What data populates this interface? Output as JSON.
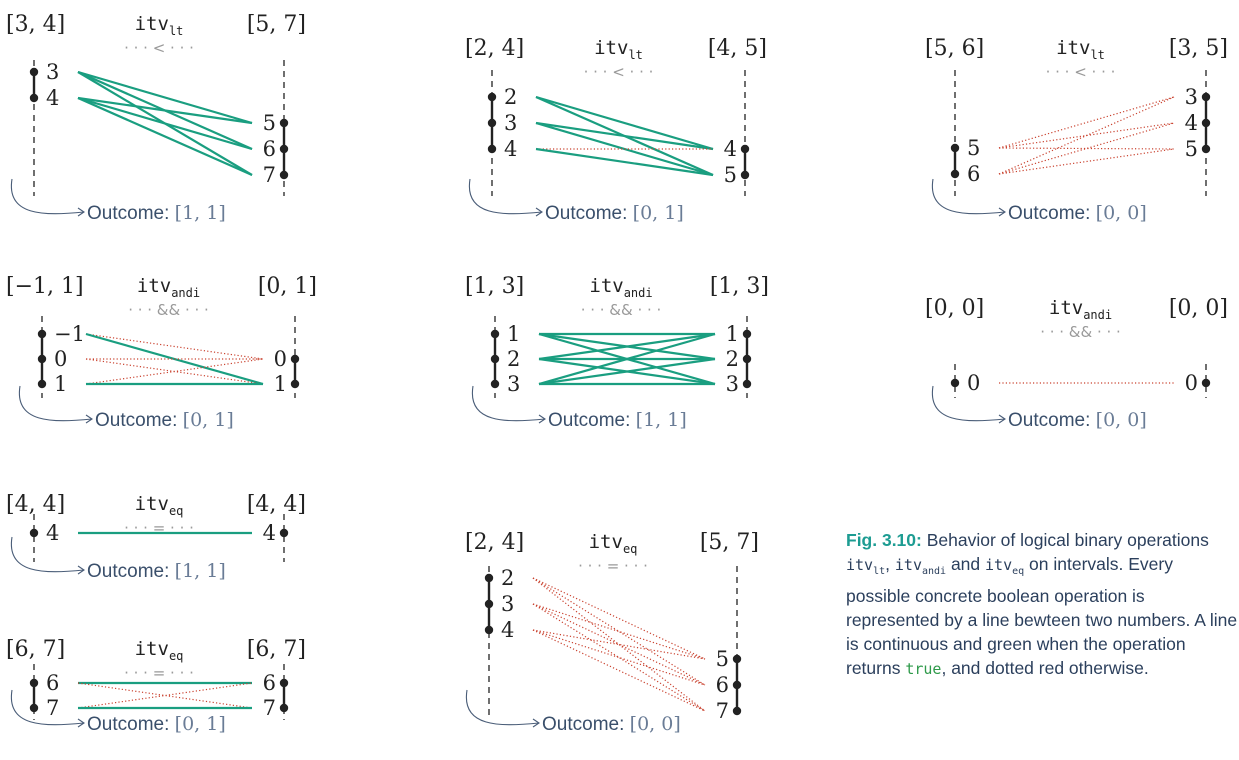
{
  "colors": {
    "true_line": "#1a9e80",
    "false_line": "#c9412e",
    "axis": "#222222",
    "comparator": "#9a9a9a",
    "outcome_label": "#3a4f6b",
    "outcome_value": "#6a7c96",
    "caption_highlight": "#1d9c92"
  },
  "panels": [
    {
      "id": "lt-1",
      "op": "itv",
      "op_sub": "lt",
      "comparator": "· · · < · · ·",
      "left_interval": "[3, 4]",
      "right_interval": "[5, 7]",
      "left_values": [
        "3",
        "4"
      ],
      "right_values": [
        "5",
        "6",
        "7"
      ],
      "outcome_label": "Outcome:",
      "outcome_value": "[1, 1]",
      "lines": [
        {
          "from": "3",
          "to": "5",
          "result": true
        },
        {
          "from": "3",
          "to": "6",
          "result": true
        },
        {
          "from": "3",
          "to": "7",
          "result": true
        },
        {
          "from": "4",
          "to": "5",
          "result": true
        },
        {
          "from": "4",
          "to": "6",
          "result": true
        },
        {
          "from": "4",
          "to": "7",
          "result": true
        }
      ]
    },
    {
      "id": "lt-2",
      "op": "itv",
      "op_sub": "lt",
      "comparator": "· · · < · · ·",
      "left_interval": "[2, 4]",
      "right_interval": "[4, 5]",
      "left_values": [
        "2",
        "3",
        "4"
      ],
      "right_values": [
        "4",
        "5"
      ],
      "outcome_label": "Outcome:",
      "outcome_value": "[0, 1]",
      "lines": [
        {
          "from": "2",
          "to": "4",
          "result": true
        },
        {
          "from": "2",
          "to": "5",
          "result": true
        },
        {
          "from": "3",
          "to": "4",
          "result": true
        },
        {
          "from": "3",
          "to": "5",
          "result": true
        },
        {
          "from": "4",
          "to": "4",
          "result": false
        },
        {
          "from": "4",
          "to": "5",
          "result": true
        }
      ]
    },
    {
      "id": "lt-3",
      "op": "itv",
      "op_sub": "lt",
      "comparator": "· · · < · · ·",
      "left_interval": "[5, 6]",
      "right_interval": "[3, 5]",
      "left_values": [
        "5",
        "6"
      ],
      "right_values": [
        "3",
        "4",
        "5"
      ],
      "outcome_label": "Outcome:",
      "outcome_value": "[0, 0]",
      "lines": [
        {
          "from": "5",
          "to": "3",
          "result": false
        },
        {
          "from": "5",
          "to": "4",
          "result": false
        },
        {
          "from": "5",
          "to": "5",
          "result": false
        },
        {
          "from": "6",
          "to": "3",
          "result": false
        },
        {
          "from": "6",
          "to": "4",
          "result": false
        },
        {
          "from": "6",
          "to": "5",
          "result": false
        }
      ]
    },
    {
      "id": "andi-1",
      "op": "itv",
      "op_sub": "andi",
      "comparator": "· · · && · · ·",
      "left_interval": "[−1, 1]",
      "right_interval": "[0, 1]",
      "left_values": [
        "−1",
        "0",
        "1"
      ],
      "right_values": [
        "0",
        "1"
      ],
      "outcome_label": "Outcome:",
      "outcome_value": "[0, 1]",
      "lines": [
        {
          "from": "−1",
          "to": "0",
          "result": false
        },
        {
          "from": "−1",
          "to": "1",
          "result": true
        },
        {
          "from": "0",
          "to": "0",
          "result": false
        },
        {
          "from": "0",
          "to": "1",
          "result": false
        },
        {
          "from": "1",
          "to": "0",
          "result": false
        },
        {
          "from": "1",
          "to": "1",
          "result": true
        }
      ]
    },
    {
      "id": "andi-2",
      "op": "itv",
      "op_sub": "andi",
      "comparator": "· · · && · · ·",
      "left_interval": "[1, 3]",
      "right_interval": "[1, 3]",
      "left_values": [
        "1",
        "2",
        "3"
      ],
      "right_values": [
        "1",
        "2",
        "3"
      ],
      "outcome_label": "Outcome:",
      "outcome_value": "[1, 1]",
      "lines": [
        {
          "from": "1",
          "to": "1",
          "result": true
        },
        {
          "from": "1",
          "to": "2",
          "result": true
        },
        {
          "from": "1",
          "to": "3",
          "result": true
        },
        {
          "from": "2",
          "to": "1",
          "result": true
        },
        {
          "from": "2",
          "to": "2",
          "result": true
        },
        {
          "from": "2",
          "to": "3",
          "result": true
        },
        {
          "from": "3",
          "to": "1",
          "result": true
        },
        {
          "from": "3",
          "to": "2",
          "result": true
        },
        {
          "from": "3",
          "to": "3",
          "result": true
        }
      ]
    },
    {
      "id": "andi-3",
      "op": "itv",
      "op_sub": "andi",
      "comparator": "· · · && · · ·",
      "left_interval": "[0, 0]",
      "right_interval": "[0, 0]",
      "left_values": [
        "0"
      ],
      "right_values": [
        "0"
      ],
      "outcome_label": "Outcome:",
      "outcome_value": "[0, 0]",
      "lines": [
        {
          "from": "0",
          "to": "0",
          "result": false
        }
      ]
    },
    {
      "id": "eq-1",
      "op": "itv",
      "op_sub": "eq",
      "comparator": "· · · = · · ·",
      "left_interval": "[4, 4]",
      "right_interval": "[4, 4]",
      "left_values": [
        "4"
      ],
      "right_values": [
        "4"
      ],
      "outcome_label": "Outcome:",
      "outcome_value": "[1, 1]",
      "lines": [
        {
          "from": "4",
          "to": "4",
          "result": true
        }
      ]
    },
    {
      "id": "eq-2",
      "op": "itv",
      "op_sub": "eq",
      "comparator": "· · · = · · ·",
      "left_interval": "[6, 7]",
      "right_interval": "[6, 7]",
      "left_values": [
        "6",
        "7"
      ],
      "right_values": [
        "6",
        "7"
      ],
      "outcome_label": "Outcome:",
      "outcome_value": "[0, 1]",
      "lines": [
        {
          "from": "6",
          "to": "6",
          "result": true
        },
        {
          "from": "6",
          "to": "7",
          "result": false
        },
        {
          "from": "7",
          "to": "6",
          "result": false
        },
        {
          "from": "7",
          "to": "7",
          "result": true
        }
      ]
    },
    {
      "id": "eq-3",
      "op": "itv",
      "op_sub": "eq",
      "comparator": "· · · = · · ·",
      "left_interval": "[2, 4]",
      "right_interval": "[5, 7]",
      "left_values": [
        "2",
        "3",
        "4"
      ],
      "right_values": [
        "5",
        "6",
        "7"
      ],
      "outcome_label": "Outcome:",
      "outcome_value": "[0, 0]",
      "lines": [
        {
          "from": "2",
          "to": "5",
          "result": false
        },
        {
          "from": "2",
          "to": "6",
          "result": false
        },
        {
          "from": "2",
          "to": "7",
          "result": false
        },
        {
          "from": "3",
          "to": "5",
          "result": false
        },
        {
          "from": "3",
          "to": "6",
          "result": false
        },
        {
          "from": "3",
          "to": "7",
          "result": false
        },
        {
          "from": "4",
          "to": "5",
          "result": false
        },
        {
          "from": "4",
          "to": "6",
          "result": false
        },
        {
          "from": "4",
          "to": "7",
          "result": false
        }
      ]
    }
  ],
  "caption": {
    "label": "Fig. 3.10:",
    "text_1": "Behavior of logical binary operations",
    "op_lt": "itv",
    "op_lt_sub": "lt",
    "sep_1": ",",
    "op_andi": "itv",
    "op_andi_sub": "andi",
    "sep_2": "and",
    "op_eq": "itv",
    "op_eq_sub": "eq",
    "text_2": "on intervals. Every possible concrete boolean operation is represented by a line bewteen two numbers. A line is continuous and green when the operation returns",
    "true_keyword": "true",
    "text_3": ", and dotted red otherwise."
  }
}
